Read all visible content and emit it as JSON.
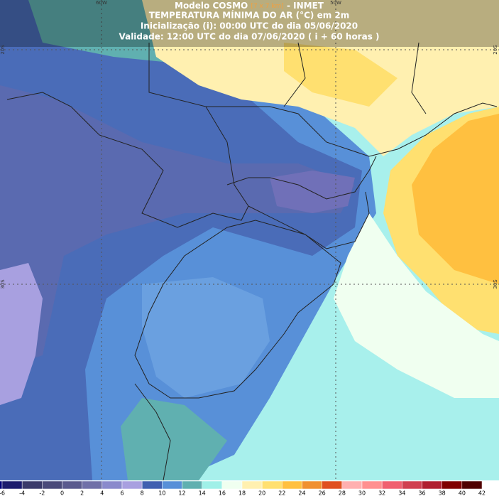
{
  "header": {
    "model": "Modelo COSMO",
    "resolution": "[7 x 7 km]",
    "source": "- INMET",
    "variable": "TEMPERATURA MÍNIMA DO AR (°C) em 2m",
    "init": "Inicialização (i): 00:00 UTC do dia 05/06/2020",
    "valid": "Validade: 12:00 UTC do dia 07/06/2020 ( i + 60 horas )"
  },
  "map": {
    "lon_labels": [
      "60W",
      "50W"
    ],
    "lat_labels": [
      "20S",
      "30S"
    ]
  },
  "colorbar": {
    "values": [
      -6,
      -4,
      -2,
      0,
      2,
      4,
      6,
      8,
      10,
      12,
      14,
      16,
      18,
      20,
      22,
      24,
      26,
      28,
      30,
      32,
      34,
      36,
      38,
      40,
      42
    ],
    "colors": [
      "#00007a",
      "#1c1c6e",
      "#3a3a6a",
      "#4a4a7a",
      "#5a5a8e",
      "#7070a8",
      "#8a8acc",
      "#a8a0e0",
      "#4060b0",
      "#5890d8",
      "#60b0b0",
      "#a0f0e8",
      "#f0fff0",
      "#fff0b0",
      "#ffe070",
      "#ffc040",
      "#f09030",
      "#e05020",
      "#ffb0b0",
      "#ff9090",
      "#f06070",
      "#d04050",
      "#b02030",
      "#800000",
      "#500000"
    ]
  }
}
